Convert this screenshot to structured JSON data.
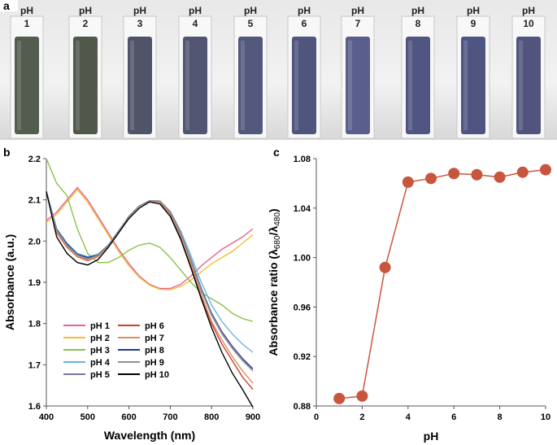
{
  "panel_a": {
    "label": "a",
    "vials": [
      {
        "ph": "pH",
        "num": "1",
        "color": "#3f4a3c"
      },
      {
        "ph": "pH",
        "num": "2",
        "color": "#3d4638"
      },
      {
        "ph": "pH",
        "num": "3",
        "color": "#3d4158"
      },
      {
        "ph": "pH",
        "num": "4",
        "color": "#3e4263"
      },
      {
        "ph": "pH",
        "num": "5",
        "color": "#40466e"
      },
      {
        "ph": "pH",
        "num": "6",
        "color": "#3d4270"
      },
      {
        "ph": "pH",
        "num": "7",
        "color": "#474d80"
      },
      {
        "ph": "pH",
        "num": "8",
        "color": "#3d4374"
      },
      {
        "ph": "pH",
        "num": "9",
        "color": "#3c4274"
      },
      {
        "ph": "pH",
        "num": "10",
        "color": "#3e4370"
      }
    ]
  },
  "chart_data": [
    {
      "panel": "b",
      "type": "line",
      "xlabel": "Wavelength (nm)",
      "ylabel": "Absorbance (a.u.)",
      "xlim": [
        400,
        900
      ],
      "ylim": [
        1.6,
        2.2
      ],
      "xticks": [
        "400",
        "500",
        "600",
        "700",
        "800",
        "900"
      ],
      "yticks": [
        "1.6",
        "1.7",
        "1.8",
        "1.9",
        "2.0",
        "2.1",
        "2.2"
      ],
      "legend_position": "bottom-left",
      "x": [
        400,
        425,
        450,
        475,
        500,
        525,
        550,
        575,
        600,
        625,
        650,
        675,
        700,
        725,
        750,
        775,
        800,
        825,
        850,
        875,
        900
      ],
      "series": [
        {
          "name": "pH 1",
          "color": "#e8609a",
          "values": [
            2.05,
            2.07,
            2.1,
            2.13,
            2.1,
            2.06,
            2.02,
            1.98,
            1.945,
            1.915,
            1.895,
            1.885,
            1.885,
            1.895,
            1.915,
            1.94,
            1.96,
            1.98,
            1.995,
            2.01,
            2.03
          ]
        },
        {
          "name": "pH 2",
          "color": "#f0c030",
          "values": [
            2.045,
            2.065,
            2.095,
            2.125,
            2.095,
            2.055,
            2.015,
            1.975,
            1.94,
            1.912,
            1.893,
            1.883,
            1.882,
            1.89,
            1.905,
            1.925,
            1.945,
            1.96,
            1.975,
            1.995,
            2.015
          ]
        },
        {
          "name": "pH 3",
          "color": "#8cc04a",
          "values": [
            2.2,
            2.14,
            2.11,
            2.03,
            1.97,
            1.948,
            1.948,
            1.96,
            1.978,
            1.99,
            1.995,
            1.985,
            1.96,
            1.93,
            1.9,
            1.875,
            1.86,
            1.845,
            1.825,
            1.812,
            1.805
          ]
        },
        {
          "name": "pH 4",
          "color": "#6ab4dc",
          "values": [
            2.12,
            2.03,
            1.995,
            1.97,
            1.962,
            1.968,
            1.99,
            2.025,
            2.06,
            2.085,
            2.098,
            2.097,
            2.072,
            2.025,
            1.965,
            1.9,
            1.845,
            1.805,
            1.775,
            1.75,
            1.73
          ]
        },
        {
          "name": "pH 5",
          "color": "#8070a8",
          "values": [
            2.12,
            2.025,
            1.99,
            1.965,
            1.955,
            1.963,
            1.988,
            2.023,
            2.06,
            2.085,
            2.098,
            2.096,
            2.07,
            2.015,
            1.95,
            1.88,
            1.82,
            1.775,
            1.74,
            1.71,
            1.685
          ]
        },
        {
          "name": "pH 6",
          "color": "#d04030",
          "values": [
            2.12,
            2.02,
            1.985,
            1.962,
            1.952,
            1.962,
            1.988,
            2.023,
            2.06,
            2.085,
            2.097,
            2.094,
            2.066,
            2.01,
            1.94,
            1.865,
            1.8,
            1.75,
            1.71,
            1.67,
            1.64
          ]
        },
        {
          "name": "pH 7",
          "color": "#d89060",
          "values": [
            2.12,
            2.022,
            1.987,
            1.963,
            1.953,
            1.962,
            1.988,
            2.023,
            2.06,
            2.085,
            2.097,
            2.095,
            2.068,
            2.012,
            1.945,
            1.87,
            1.805,
            1.76,
            1.72,
            1.685,
            1.655
          ]
        },
        {
          "name": "pH 8",
          "color": "#203890",
          "values": [
            2.12,
            2.028,
            1.993,
            1.968,
            1.96,
            1.966,
            1.99,
            2.024,
            2.06,
            2.085,
            2.098,
            2.097,
            2.071,
            2.02,
            1.955,
            1.885,
            1.825,
            1.78,
            1.745,
            1.715,
            1.69
          ]
        },
        {
          "name": "pH 9",
          "color": "#909090",
          "values": [
            2.12,
            2.026,
            1.99,
            1.966,
            1.957,
            1.965,
            1.989,
            2.024,
            2.06,
            2.085,
            2.098,
            2.097,
            2.071,
            2.02,
            1.953,
            1.882,
            1.822,
            1.777,
            1.742,
            1.712,
            1.685
          ]
        },
        {
          "name": "pH 10",
          "color": "#000000",
          "values": [
            2.12,
            2.01,
            1.97,
            1.948,
            1.942,
            1.955,
            1.985,
            2.02,
            2.055,
            2.08,
            2.095,
            2.09,
            2.06,
            2.005,
            1.935,
            1.86,
            1.79,
            1.73,
            1.68,
            1.64,
            1.597
          ]
        }
      ]
    },
    {
      "panel": "c",
      "type": "line",
      "xlabel": "pH",
      "ylabel": "Absorbance ratio (λ680/λ480)",
      "ylabel_parts": {
        "main": "Absorbance ratio (λ",
        "sub1": "680",
        "mid": "/λ",
        "sub2": "480",
        "end": ")"
      },
      "xlim": [
        0,
        10
      ],
      "ylim": [
        0.88,
        1.08
      ],
      "xticks": [
        "0",
        "2",
        "4",
        "6",
        "8",
        "10"
      ],
      "yticks": [
        "0.88",
        "0.92",
        "0.96",
        "1.00",
        "1.04",
        "1.08"
      ],
      "color": "#c8563e",
      "x": [
        1,
        2,
        3,
        4,
        5,
        6,
        7,
        8,
        9,
        10
      ],
      "values": [
        0.886,
        0.888,
        0.992,
        1.061,
        1.064,
        1.068,
        1.067,
        1.065,
        1.069,
        1.071
      ]
    }
  ]
}
